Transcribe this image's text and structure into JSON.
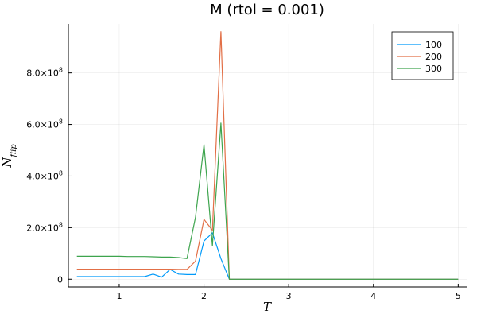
{
  "chart_data": {
    "type": "line",
    "title": "M (rtol = 0.001)",
    "xlabel": "T",
    "ylabel": "N_flip",
    "xlim": [
      0.4,
      5.1
    ],
    "ylim": [
      -30000000,
      990000000
    ],
    "xticks": [
      1,
      2,
      3,
      4,
      5
    ],
    "xtick_labels": [
      "1",
      "2",
      "3",
      "4",
      "5"
    ],
    "yticks": [
      0,
      200000000,
      400000000,
      600000000,
      800000000
    ],
    "ytick_mantissas": [
      "0",
      "2.0×10",
      "4.0×10",
      "6.0×10",
      "8.0×10"
    ],
    "ytick_exponents": [
      "",
      "8",
      "8",
      "8",
      "8"
    ],
    "grid": true,
    "legend_position": "top-right",
    "series": [
      {
        "name": "100",
        "color": "#009af9",
        "x": [
          0.5,
          0.6,
          0.7,
          0.8,
          0.9,
          1.0,
          1.1,
          1.2,
          1.3,
          1.4,
          1.5,
          1.6,
          1.7,
          1.8,
          1.9,
          2.0,
          2.1,
          2.2,
          2.3,
          2.4,
          2.5,
          3.0,
          3.5,
          4.0,
          4.5,
          5.0
        ],
        "y": [
          10000000,
          10000000,
          10000000,
          10000000,
          10000000,
          10000000,
          10000000,
          10000000,
          10000000,
          20000000,
          8000000,
          38000000,
          20000000,
          18000000,
          18000000,
          148000000,
          180000000,
          80000000,
          0,
          0,
          0,
          0,
          0,
          0,
          0,
          0
        ]
      },
      {
        "name": "200",
        "color": "#e26f46",
        "x": [
          0.5,
          0.6,
          0.7,
          0.8,
          0.9,
          1.0,
          1.1,
          1.2,
          1.3,
          1.4,
          1.5,
          1.6,
          1.7,
          1.8,
          1.9,
          2.0,
          2.1,
          2.2,
          2.3,
          2.4,
          2.5,
          3.0,
          3.5,
          4.0,
          4.5,
          5.0
        ],
        "y": [
          39000000,
          39000000,
          39000000,
          39000000,
          39000000,
          39000000,
          39000000,
          39000000,
          39000000,
          39000000,
          39000000,
          39000000,
          38000000,
          38000000,
          70000000,
          232000000,
          190000000,
          960000000,
          0,
          0,
          0,
          0,
          0,
          0,
          0,
          0
        ]
      },
      {
        "name": "300",
        "color": "#3da44d",
        "x": [
          0.5,
          0.6,
          0.7,
          0.8,
          0.9,
          1.0,
          1.1,
          1.2,
          1.3,
          1.4,
          1.5,
          1.6,
          1.7,
          1.8,
          1.9,
          2.0,
          2.1,
          2.2,
          2.3,
          2.4,
          2.5,
          3.0,
          3.5,
          4.0,
          4.5,
          5.0
        ],
        "y": [
          89000000,
          89000000,
          89000000,
          89000000,
          89000000,
          89000000,
          88000000,
          88000000,
          88000000,
          87000000,
          86000000,
          86000000,
          84000000,
          80000000,
          240000000,
          522000000,
          130000000,
          605000000,
          0,
          0,
          0,
          0,
          0,
          0,
          0,
          0
        ]
      }
    ]
  }
}
